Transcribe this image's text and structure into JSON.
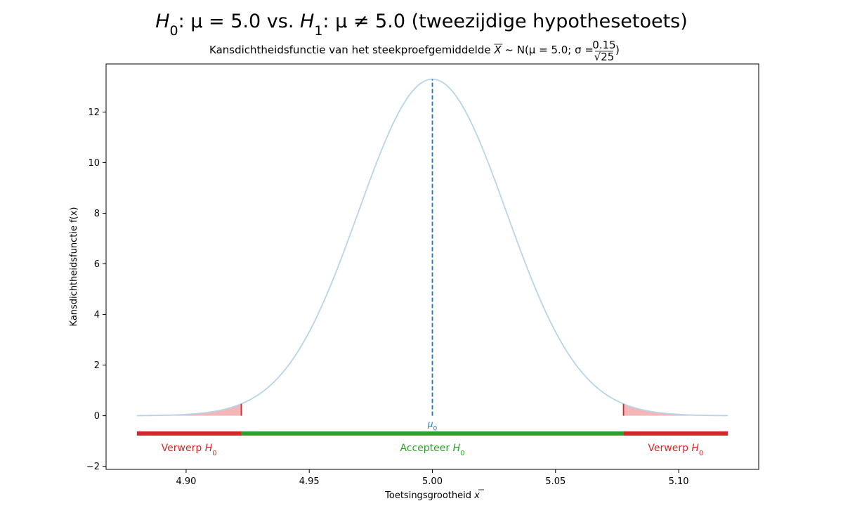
{
  "chart_data": {
    "type": "area",
    "suptitle": {
      "h0": "H",
      "h0_sub": "0",
      "h0_text": ": μ = 5.0 vs. ",
      "h1": "H",
      "h1_sub": "1",
      "h1_text": ": μ ≠ 5.0 (tweezijdige hypothesetoets)"
    },
    "title": {
      "prefix": "Kansdichtheidsfunctie van het steekproefgemiddelde ",
      "xbar": "X",
      "dist": " ~ N(μ = 5.0; σ = ",
      "num": "0.15",
      "den": "√25",
      "close": ")"
    },
    "xlabel": {
      "text": "Toetsingsgrootheid ",
      "var": "x"
    },
    "ylabel": "Kansdichtheidsfunctie f(x)",
    "xlim": [
      4.8675,
      5.1325
    ],
    "ylim": [
      -2.12,
      13.9
    ],
    "xticks": [
      4.9,
      4.95,
      5.0,
      5.05,
      5.1
    ],
    "xtick_labels": [
      "4.90",
      "4.95",
      "5.00",
      "5.05",
      "5.10"
    ],
    "yticks": [
      -2,
      0,
      2,
      4,
      6,
      8,
      10,
      12
    ],
    "ytick_labels": [
      "−2",
      "0",
      "2",
      "4",
      "6",
      "8",
      "10",
      "12"
    ],
    "distribution": {
      "mu": 5.0,
      "sigma": 0.03,
      "x_min": 4.88,
      "x_max": 5.12
    },
    "critical_values": [
      4.9224,
      5.0776
    ],
    "mu0_label": {
      "base": "μ",
      "sub": "0"
    },
    "regions": [
      {
        "label": "Verwerp ",
        "sym": "H",
        "sub": "0",
        "from": 4.88,
        "to": 4.9224,
        "color": "#d62728"
      },
      {
        "label": "Accepteer ",
        "sym": "H",
        "sub": "0",
        "from": 4.9224,
        "to": 5.0776,
        "color": "#2ca02c"
      },
      {
        "label": "Verwerp ",
        "sym": "H",
        "sub": "0",
        "from": 5.0776,
        "to": 5.12,
        "color": "#d62728"
      }
    ],
    "region_bar_y": -0.7,
    "colors": {
      "curve": "#b8d4e6",
      "mean_line": "#1f77b4",
      "tail_fill": "#f4b6b8",
      "critical_line": "#d62728"
    }
  }
}
